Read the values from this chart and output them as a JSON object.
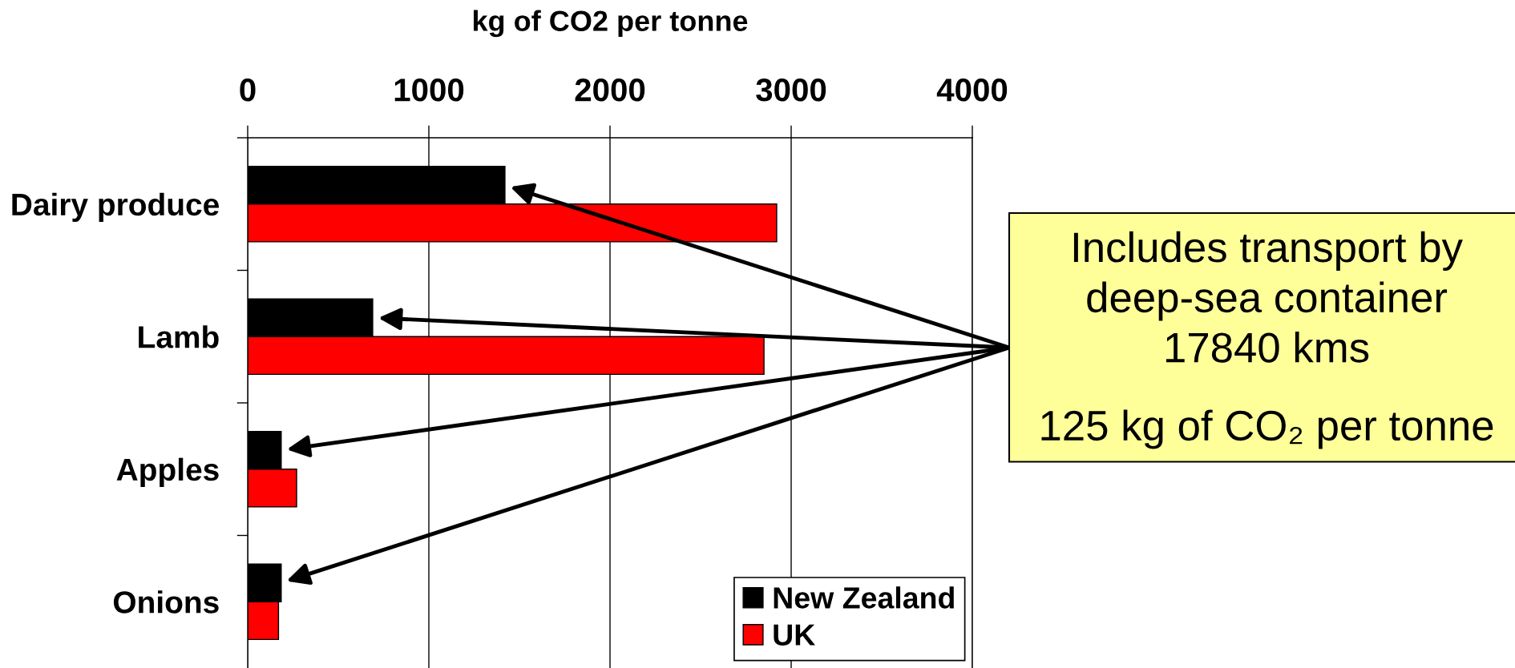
{
  "chart_data": {
    "type": "bar",
    "orientation": "horizontal",
    "xlabel": "kg of CO2 per tonne",
    "categories": [
      "Dairy produce",
      "Lamb",
      "Apples",
      "Onions"
    ],
    "series": [
      {
        "name": "New Zealand",
        "color": "#000000",
        "values": [
          1420,
          690,
          185,
          185
        ]
      },
      {
        "name": "UK",
        "color": "#ff0000",
        "values": [
          2920,
          2850,
          270,
          170
        ]
      }
    ],
    "xlim": [
      0,
      4000
    ],
    "xticks": [
      0,
      1000,
      2000,
      3000,
      4000
    ],
    "grid": "x",
    "legend": "bottom right",
    "annotations": [
      "Includes transport by\ndeep-sea container\n17840 kms",
      "125 kg of CO₂ per tonne"
    ]
  }
}
